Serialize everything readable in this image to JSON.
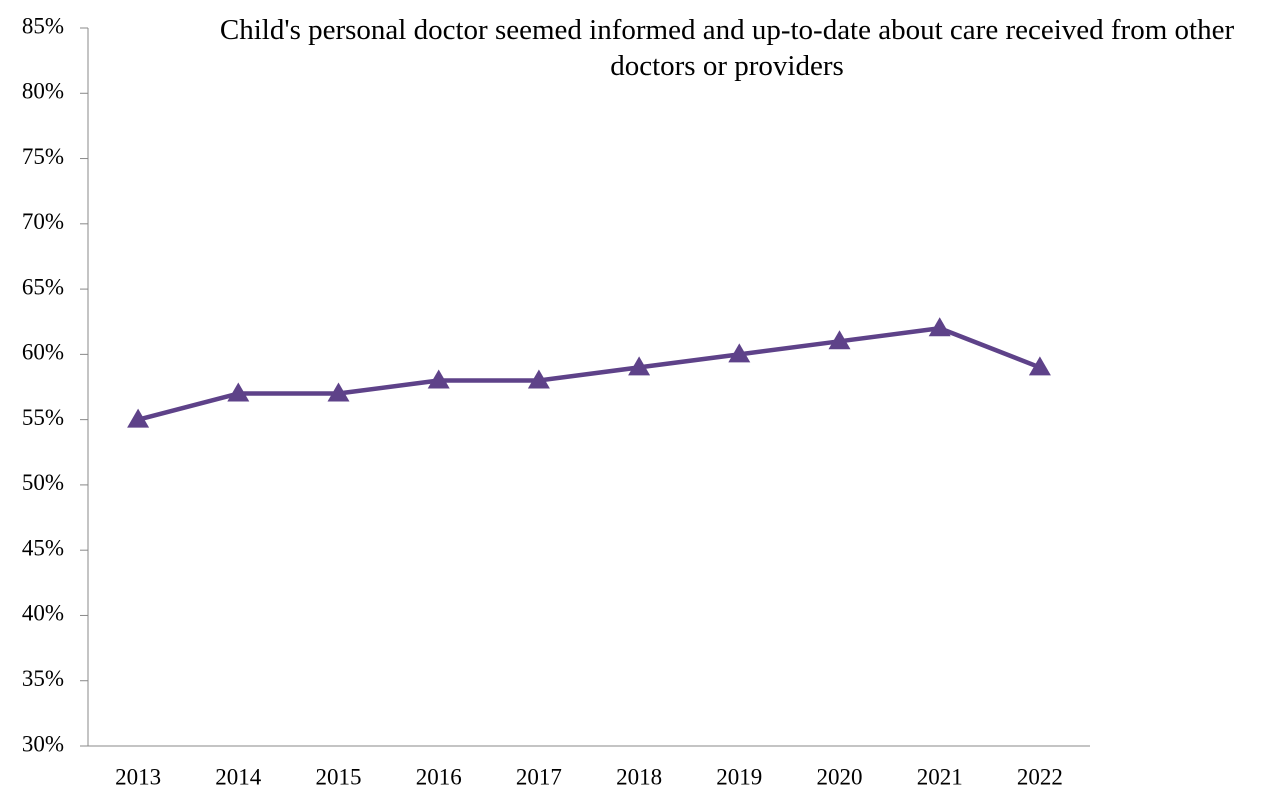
{
  "chart_data": {
    "type": "line",
    "title": "Child's personal doctor seemed informed and up-to-date about care received from other doctors or providers",
    "categories": [
      "2013",
      "2014",
      "2015",
      "2016",
      "2017",
      "2018",
      "2019",
      "2020",
      "2021",
      "2022"
    ],
    "values": [
      55,
      57,
      57,
      58,
      58,
      59,
      60,
      61,
      62,
      59
    ],
    "color": "#5e4289",
    "marker": "triangle",
    "ylim": [
      30,
      85
    ],
    "yticks": [
      {
        "value": 30,
        "label": "30%"
      },
      {
        "value": 35,
        "label": "35%"
      },
      {
        "value": 40,
        "label": "40%"
      },
      {
        "value": 45,
        "label": "45%"
      },
      {
        "value": 50,
        "label": "50%"
      },
      {
        "value": 55,
        "label": "55%"
      },
      {
        "value": 60,
        "label": "60%"
      },
      {
        "value": 65,
        "label": "65%"
      },
      {
        "value": 70,
        "label": "70%"
      },
      {
        "value": 75,
        "label": "75%"
      },
      {
        "value": 80,
        "label": "80%"
      },
      {
        "value": 85,
        "label": "85%"
      }
    ],
    "grid": false
  }
}
